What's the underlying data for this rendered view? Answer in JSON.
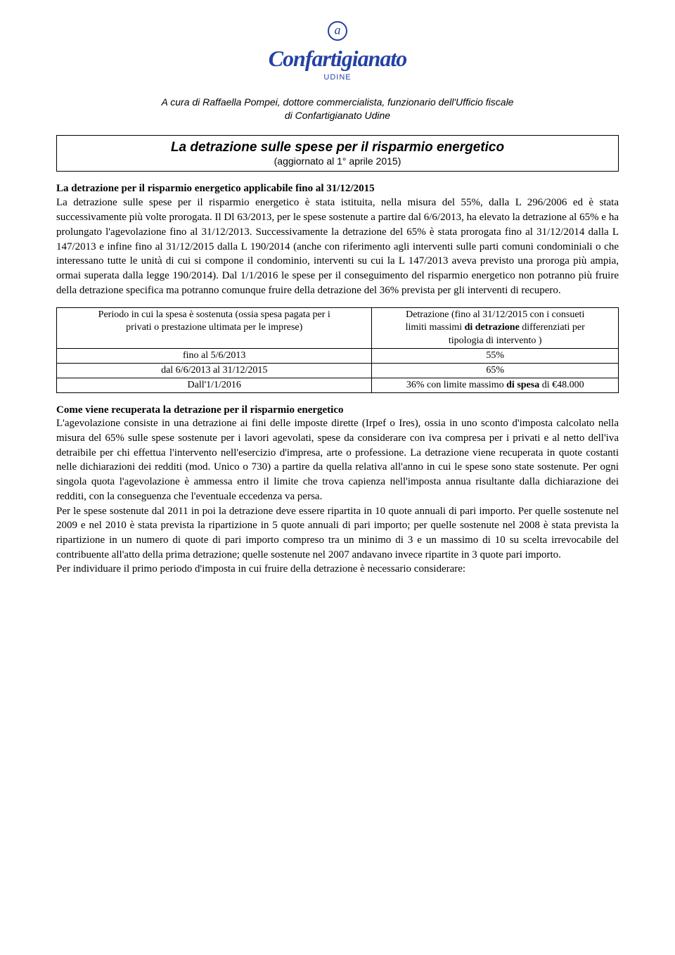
{
  "logo": {
    "main": "Confartigianato",
    "sub": "UDINE"
  },
  "author": {
    "line1": "A cura di Raffaella Pompei, dottore commercialista, funzionario dell'Ufficio fiscale",
    "line2": "di Confartigianato Udine"
  },
  "titlebox": {
    "title": "La detrazione sulle spese per il risparmio energetico",
    "subtitle": "(aggiornato al 1° aprile 2015)"
  },
  "para1": {
    "lead": "La detrazione per il risparmio energetico applicabile fino al 31/12/2015",
    "rest": "La detrazione sulle spese per il risparmio energetico è stata istituita, nella misura del 55%, dalla L 296/2006 ed è stata successivamente più volte prorogata. Il Dl 63/2013, per le spese sostenute a partire dal 6/6/2013, ha elevato la detrazione al 65% e ha prolungato l'agevolazione fino al 31/12/2013. Successivamente la detrazione del 65% è stata prorogata fino al 31/12/2014 dalla L 147/2013 e infine fino al 31/12/2015 dalla L 190/2014 (anche con riferimento agli interventi sulle parti comuni condominiali o che interessano tutte le unità di cui si compone il condominio, interventi su cui la L 147/2013 aveva previsto una proroga più ampia, ormai superata dalla legge 190/2014). Dal 1/1/2016 le spese per il conseguimento del risparmio energetico non potranno più fruire della detrazione specifica ma potranno comunque fruire della detrazione del 36% prevista per gli interventi di recupero."
  },
  "table": {
    "h1a": "Periodo in cui la spesa è sostenuta (ossia spesa pagata per i",
    "h1b": "privati o prestazione ultimata per le imprese)",
    "h2a": "Detrazione (fino al 31/12/2015 con i consueti",
    "h2b": "limiti massimi ",
    "h2b_bold": "di detrazione",
    "h2c": " differenziati per",
    "h2d": "tipologia di intervento )",
    "r1c1": "fino al 5/6/2013",
    "r1c2": "55%",
    "r2c1": "dal 6/6/2013 al 31/12/2015",
    "r2c2": "65%",
    "r3c1": "Dall'1/1/2016",
    "r3c2a": "36% con limite massimo ",
    "r3c2b": "di spesa",
    "r3c2c": " di €48.000"
  },
  "section2": {
    "head": "Come viene recuperata la detrazione per il risparmio energetico",
    "p1": "L'agevolazione consiste in una detrazione ai fini delle imposte dirette (Irpef o Ires), ossia in uno sconto d'imposta calcolato nella misura del 65% sulle spese sostenute per i lavori agevolati, spese da considerare con iva compresa per i privati e al netto dell'iva detraibile per chi effettua l'intervento nell'esercizio d'impresa, arte o professione. La detrazione viene recuperata in quote costanti nelle dichiarazioni dei redditi (mod. Unico o 730) a partire da quella relativa all'anno in cui le spese sono state sostenute. Per ogni singola quota l'agevolazione è ammessa entro il limite che trova capienza nell'imposta annua risultante dalla dichiarazione dei redditi, con la conseguenza che l'eventuale eccedenza va persa.",
    "p2": "Per le spese sostenute dal 2011 in poi la detrazione deve essere ripartita in 10 quote annuali di pari importo. Per quelle sostenute nel 2009 e nel 2010 è stata prevista la ripartizione in 5 quote annuali di pari importo; per quelle sostenute nel 2008 è stata prevista la ripartizione in un numero di quote di pari importo compreso tra un minimo di 3 e un massimo di 10 su scelta irrevocabile del contribuente all'atto della prima detrazione; quelle sostenute nel 2007 andavano invece ripartite in 3 quote pari importo.",
    "p3": "Per individuare il primo periodo d'imposta in cui fruire della detrazione è necessario considerare:"
  },
  "colors": {
    "brand": "#2441a5",
    "text": "#000000",
    "bg": "#ffffff"
  }
}
